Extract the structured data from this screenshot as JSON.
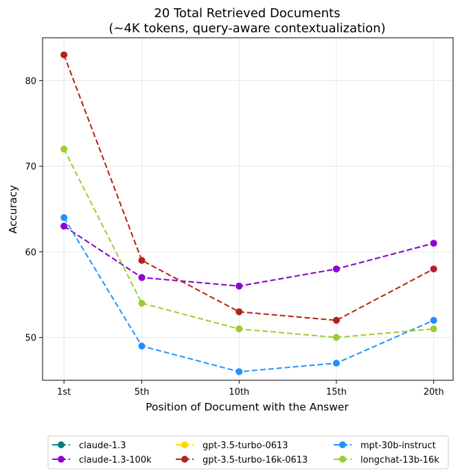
{
  "chart_data": {
    "type": "line",
    "title_lines": [
      "20 Total Retrieved Documents",
      "(~4K tokens, query-aware contextualization)"
    ],
    "xlabel": "Position of Document with the Answer",
    "ylabel": "Accuracy",
    "categories": [
      "1st",
      "5th",
      "10th",
      "15th",
      "20th"
    ],
    "x": [
      1,
      5,
      10,
      15,
      20
    ],
    "xlim": [
      -0.1,
      21.0
    ],
    "ylim": [
      45.0,
      85.0
    ],
    "yticks": [
      50,
      60,
      70,
      80
    ],
    "grid": true,
    "legend_position": "bottom-center",
    "series": [
      {
        "name": "claude-1.3",
        "color": "#008080",
        "values": [
          63,
          57,
          56,
          58,
          61
        ]
      },
      {
        "name": "claude-1.3-100k",
        "color": "#9400d3",
        "values": [
          63,
          57,
          56,
          58,
          61
        ]
      },
      {
        "name": "gpt-3.5-turbo-0613",
        "color": "#ffd700",
        "values": [
          83,
          59,
          53,
          52,
          58
        ]
      },
      {
        "name": "gpt-3.5-turbo-16k-0613",
        "color": "#b22222",
        "values": [
          83,
          59,
          53,
          52,
          58
        ]
      },
      {
        "name": "mpt-30b-instruct",
        "color": "#1e90ff",
        "values": [
          64,
          49,
          46,
          47,
          52
        ]
      },
      {
        "name": "longchat-13b-16k",
        "color": "#9acd32",
        "values": [
          72,
          54,
          51,
          50,
          51
        ]
      }
    ]
  }
}
